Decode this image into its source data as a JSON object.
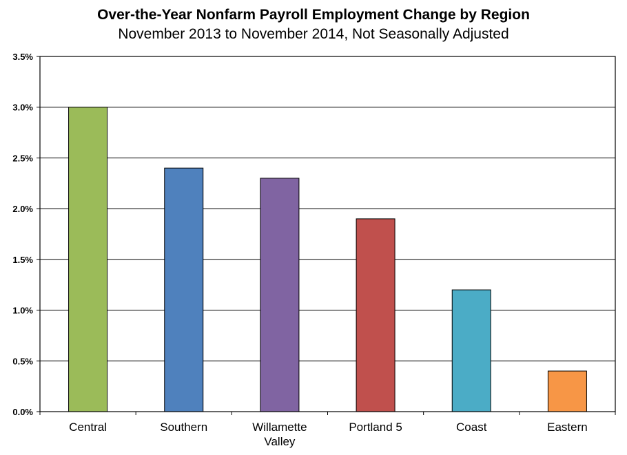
{
  "chart_data": {
    "type": "bar",
    "title": "Over-the-Year Nonfarm Payroll Employment Change by Region",
    "subtitle": "November 2013 to November 2014, Not Seasonally Adjusted",
    "categories": [
      "Central",
      "Southern",
      "Willamette Valley",
      "Portland 5",
      "Coast",
      "Eastern"
    ],
    "values": [
      3.0,
      2.4,
      2.3,
      1.9,
      1.2,
      0.4
    ],
    "colors": [
      "#9BBB59",
      "#4F81BD",
      "#8064A2",
      "#C0504D",
      "#4BACC6",
      "#F79646"
    ],
    "ylim": [
      0,
      3.5
    ],
    "yticks": [
      "0.0%",
      "0.5%",
      "1.0%",
      "1.5%",
      "2.0%",
      "2.5%",
      "3.0%",
      "3.5%"
    ],
    "grid": true,
    "xlabel": "",
    "ylabel": ""
  }
}
